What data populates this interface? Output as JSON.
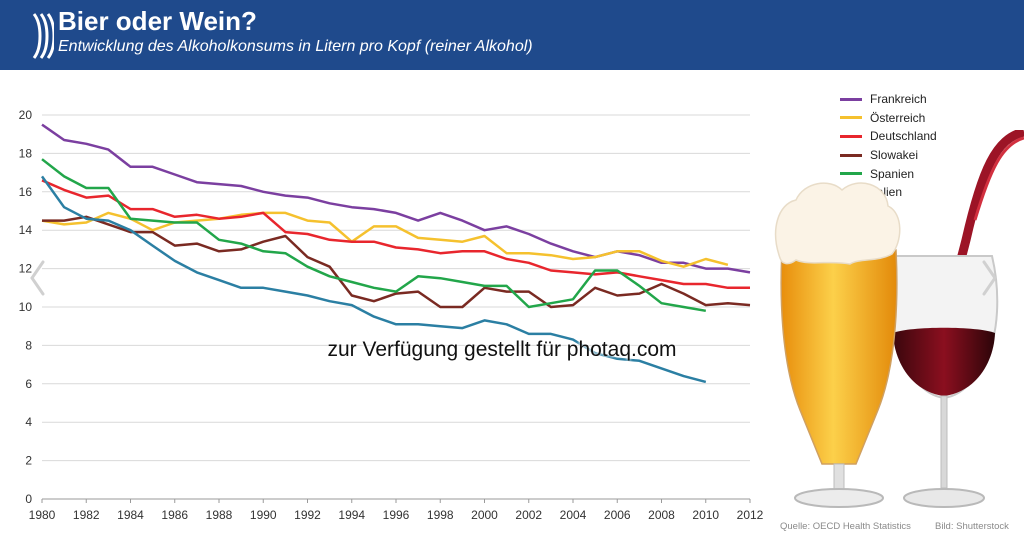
{
  "header": {
    "title": "Bier oder Wein?",
    "subtitle": "Entwicklung des Alkoholkonsums in Litern pro Kopf (reiner Alkohol)"
  },
  "watermark": "zur Verfügung gestellt für photaq.com",
  "footer": {
    "source": "Quelle: OECD Health Statistics",
    "image_credit": "Bild: Shutterstock"
  },
  "navigation": {
    "prev_icon": "chevron-left-icon",
    "next_icon": "chevron-right-icon"
  },
  "colors": {
    "header_bg": "#1f4a8c",
    "grid": "#d9d9d9"
  },
  "chart_data": {
    "type": "line",
    "title": "Bier oder Wein?",
    "subtitle": "Entwicklung des Alkoholkonsums in Litern pro Kopf (reiner Alkohol)",
    "xlabel": "",
    "ylabel": "",
    "xlim": [
      1980,
      2012
    ],
    "ylim": [
      0,
      20
    ],
    "x_ticks": [
      1980,
      1982,
      1984,
      1986,
      1988,
      1990,
      1992,
      1994,
      1996,
      1998,
      2000,
      2002,
      2004,
      2006,
      2008,
      2010,
      2012
    ],
    "y_ticks": [
      0,
      2,
      4,
      6,
      8,
      10,
      12,
      14,
      16,
      18,
      20
    ],
    "grid": "horizontal",
    "legend_position": "top-right",
    "series": [
      {
        "name": "Frankreich",
        "color": "#7b3fa0",
        "x": [
          1980,
          1981,
          1982,
          1983,
          1984,
          1985,
          1986,
          1987,
          1988,
          1989,
          1990,
          1991,
          1992,
          1993,
          1994,
          1995,
          1996,
          1997,
          1998,
          1999,
          2000,
          2001,
          2002,
          2003,
          2004,
          2005,
          2006,
          2007,
          2008,
          2009,
          2010,
          2011,
          2012
        ],
        "values": [
          19.5,
          18.7,
          18.5,
          18.2,
          17.3,
          17.3,
          16.9,
          16.5,
          16.4,
          16.3,
          16.0,
          15.8,
          15.7,
          15.4,
          15.2,
          15.1,
          14.9,
          14.5,
          14.9,
          14.5,
          14.0,
          14.2,
          13.8,
          13.3,
          12.9,
          12.6,
          12.9,
          12.7,
          12.3,
          12.3,
          12.0,
          12.0,
          11.8
        ]
      },
      {
        "name": "Österreich",
        "color": "#f5c12e",
        "x": [
          1980,
          1981,
          1982,
          1983,
          1984,
          1985,
          1986,
          1987,
          1988,
          1989,
          1990,
          1991,
          1992,
          1993,
          1994,
          1995,
          1996,
          1997,
          1998,
          1999,
          2000,
          2001,
          2002,
          2003,
          2004,
          2005,
          2006,
          2007,
          2008,
          2009,
          2010,
          2011
        ],
        "values": [
          14.5,
          14.3,
          14.4,
          14.9,
          14.6,
          14.0,
          14.4,
          14.5,
          14.6,
          14.8,
          14.9,
          14.9,
          14.5,
          14.4,
          13.4,
          14.2,
          14.2,
          13.6,
          13.5,
          13.4,
          13.7,
          12.8,
          12.8,
          12.7,
          12.5,
          12.6,
          12.9,
          12.9,
          12.4,
          12.1,
          12.5,
          12.2
        ]
      },
      {
        "name": "Deutschland",
        "color": "#e8262d",
        "x": [
          1980,
          1981,
          1982,
          1983,
          1984,
          1985,
          1986,
          1987,
          1988,
          1989,
          1990,
          1991,
          1992,
          1993,
          1994,
          1995,
          1996,
          1997,
          1998,
          1999,
          2000,
          2001,
          2002,
          2003,
          2004,
          2005,
          2006,
          2007,
          2008,
          2009,
          2010,
          2011,
          2012
        ],
        "values": [
          16.6,
          16.1,
          15.7,
          15.8,
          15.1,
          15.1,
          14.7,
          14.8,
          14.6,
          14.7,
          14.9,
          13.9,
          13.8,
          13.5,
          13.4,
          13.4,
          13.1,
          13.0,
          12.8,
          12.9,
          12.9,
          12.5,
          12.3,
          11.9,
          11.8,
          11.7,
          11.8,
          11.6,
          11.4,
          11.2,
          11.2,
          11.0,
          11.0
        ]
      },
      {
        "name": "Slowakei",
        "color": "#7a2a22",
        "x": [
          1980,
          1981,
          1982,
          1983,
          1984,
          1985,
          1986,
          1987,
          1988,
          1989,
          1990,
          1991,
          1992,
          1993,
          1994,
          1995,
          1996,
          1997,
          1998,
          1999,
          2000,
          2001,
          2002,
          2003,
          2004,
          2005,
          2006,
          2007,
          2008,
          2009,
          2010,
          2011,
          2012
        ],
        "values": [
          14.5,
          14.5,
          14.7,
          14.3,
          13.9,
          13.9,
          13.2,
          13.3,
          12.9,
          13.0,
          13.4,
          13.7,
          12.6,
          12.1,
          10.6,
          10.3,
          10.7,
          10.8,
          10.0,
          10.0,
          11.0,
          10.8,
          10.8,
          10.0,
          10.1,
          11.0,
          10.6,
          10.7,
          11.2,
          10.7,
          10.1,
          10.2,
          10.1
        ]
      },
      {
        "name": "Spanien",
        "color": "#22a64a",
        "x": [
          1980,
          1981,
          1982,
          1983,
          1984,
          1985,
          1986,
          1987,
          1988,
          1989,
          1990,
          1991,
          1992,
          1993,
          1994,
          1995,
          1996,
          1997,
          1998,
          1999,
          2000,
          2001,
          2002,
          2003,
          2004,
          2005,
          2006,
          2007,
          2008,
          2009,
          2010
        ],
        "values": [
          17.7,
          16.8,
          16.2,
          16.2,
          14.6,
          14.5,
          14.4,
          14.4,
          13.5,
          13.3,
          12.9,
          12.8,
          12.1,
          11.6,
          11.3,
          11.0,
          10.8,
          11.6,
          11.5,
          11.3,
          11.1,
          11.1,
          10.0,
          10.2,
          10.4,
          11.9,
          11.9,
          11.1,
          10.2,
          10.0,
          9.8
        ]
      },
      {
        "name": "Italien",
        "color": "#2b7fa3",
        "x": [
          1980,
          1981,
          1982,
          1983,
          1984,
          1985,
          1986,
          1987,
          1988,
          1989,
          1990,
          1991,
          1992,
          1993,
          1994,
          1995,
          1996,
          1997,
          1998,
          1999,
          2000,
          2001,
          2002,
          2003,
          2004,
          2005,
          2006,
          2007,
          2008,
          2009,
          2010
        ],
        "values": [
          16.8,
          15.2,
          14.6,
          14.5,
          14.0,
          13.2,
          12.4,
          11.8,
          11.4,
          11.0,
          11.0,
          10.8,
          10.6,
          10.3,
          10.1,
          9.5,
          9.1,
          9.1,
          9.0,
          8.9,
          9.3,
          9.1,
          8.6,
          8.6,
          8.3,
          7.6,
          7.3,
          7.2,
          6.8,
          6.4,
          6.1
        ]
      }
    ]
  }
}
